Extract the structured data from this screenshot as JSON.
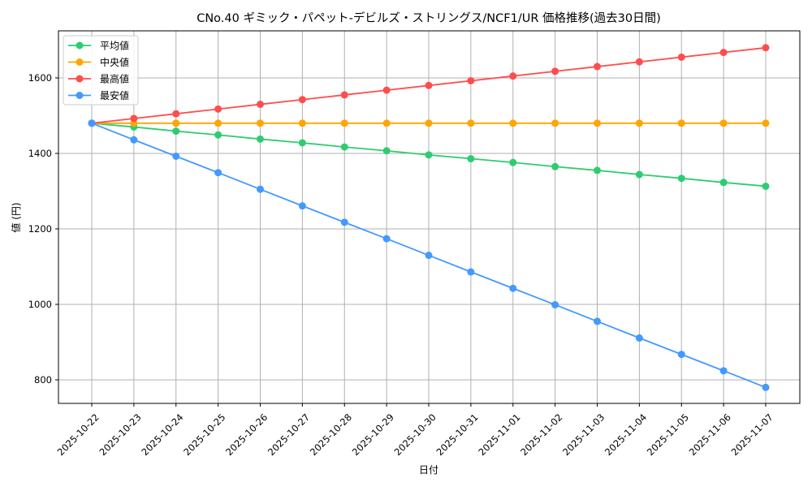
{
  "chart_data": {
    "type": "line",
    "title": "CNo.40 ギミック・パペット-デビルズ・ストリングス/NCF1/UR 価格推移(過去30日間)",
    "xlabel": "日付",
    "ylabel": "値 (円)",
    "categories": [
      "2025-10-22",
      "2025-10-23",
      "2025-10-24",
      "2025-10-25",
      "2025-10-26",
      "2025-10-27",
      "2025-10-28",
      "2025-10-29",
      "2025-10-30",
      "2025-10-31",
      "2025-11-01",
      "2025-11-02",
      "2025-11-03",
      "2025-11-04",
      "2025-11-05",
      "2025-11-06",
      "2025-11-07"
    ],
    "yticks": [
      800,
      1000,
      1200,
      1400,
      1600
    ],
    "ylim": [
      735,
      1720
    ],
    "grid": true,
    "legend": "top-left",
    "series": [
      {
        "name": "平均値",
        "color": "#2ecc71",
        "values": [
          1480,
          1470,
          1459,
          1449,
          1438,
          1428,
          1417,
          1407,
          1396,
          1386,
          1376,
          1365,
          1355,
          1344,
          1334,
          1323,
          1313
        ]
      },
      {
        "name": "中央値",
        "color": "#ffa500",
        "values": [
          1480,
          1480,
          1480,
          1480,
          1480,
          1480,
          1480,
          1480,
          1480,
          1480,
          1480,
          1480,
          1480,
          1480,
          1480,
          1480,
          1480
        ]
      },
      {
        "name": "最高値",
        "color": "#ff4d4d",
        "values": [
          1480,
          1492.5,
          1505,
          1517.5,
          1530,
          1542.5,
          1555,
          1567.5,
          1580,
          1592.5,
          1605,
          1617.5,
          1630,
          1642.5,
          1655,
          1667.5,
          1680
        ]
      },
      {
        "name": "最安値",
        "color": "#4499ff",
        "values": [
          1480,
          1436,
          1392.5,
          1349,
          1305,
          1261,
          1217.5,
          1174,
          1130,
          1086,
          1042.5,
          999,
          955,
          911,
          867.5,
          824,
          780
        ]
      }
    ]
  }
}
